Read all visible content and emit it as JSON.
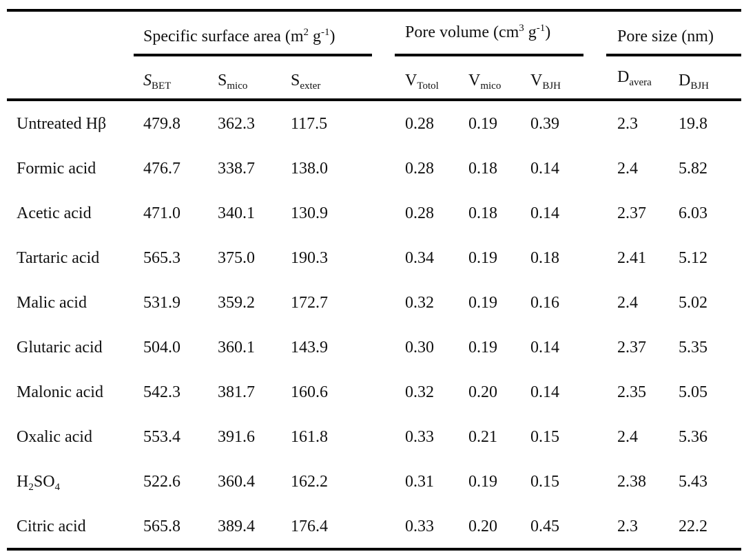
{
  "groups": [
    {
      "label": "Specific surface area (m",
      "sup1": "2",
      "mid": " g",
      "sup2": "-1",
      "end": ")"
    },
    {
      "label": "Pore volume (cm",
      "sup1": "3",
      "mid": " g",
      "sup2": "-1",
      "end": ")"
    },
    {
      "label": "Pore size (nm)"
    }
  ],
  "columns": [
    {
      "main": "S",
      "sub": "BET",
      "italic": true
    },
    {
      "main": "S",
      "sub": "mico"
    },
    {
      "main": "S",
      "sub": "exter"
    },
    {
      "main": "V",
      "sub": "Totol"
    },
    {
      "main": "V",
      "sub": "mico"
    },
    {
      "main": "V",
      "sub": "BJH"
    },
    {
      "main": "D",
      "sub": "avera"
    },
    {
      "main": "D",
      "sub": "BJH"
    }
  ],
  "rows": [
    {
      "label": "Untreated Hβ",
      "values": [
        "479.8",
        "362.3",
        "117.5",
        "0.28",
        "0.19",
        "0.39",
        "2.3",
        "19.8"
      ]
    },
    {
      "label": "Formic acid",
      "values": [
        "476.7",
        "338.7",
        "138.0",
        "0.28",
        "0.18",
        "0.14",
        "2.4",
        "5.82"
      ]
    },
    {
      "label": "Acetic acid",
      "values": [
        "471.0",
        "340.1",
        "130.9",
        "0.28",
        "0.18",
        "0.14",
        "2.37",
        "6.03"
      ]
    },
    {
      "label": "Tartaric acid",
      "values": [
        "565.3",
        "375.0",
        "190.3",
        "0.34",
        "0.19",
        "0.18",
        "2.41",
        "5.12"
      ]
    },
    {
      "label": "Malic acid",
      "values": [
        "531.9",
        "359.2",
        "172.7",
        "0.32",
        "0.19",
        "0.16",
        "2.4",
        "5.02"
      ]
    },
    {
      "label": "Glutaric acid",
      "values": [
        "504.0",
        "360.1",
        "143.9",
        "0.30",
        "0.19",
        "0.14",
        "2.37",
        "5.35"
      ]
    },
    {
      "label": "Malonic acid",
      "values": [
        "542.3",
        "381.7",
        "160.6",
        "0.32",
        "0.20",
        "0.14",
        "2.35",
        "5.05"
      ]
    },
    {
      "label": "Oxalic acid",
      "values": [
        "553.4",
        "391.6",
        "161.8",
        "0.33",
        "0.21",
        "0.15",
        "2.4",
        "5.36"
      ]
    },
    {
      "label": "H",
      "label_sub": "2",
      "label_mid": "SO",
      "label_sub2": "4",
      "values": [
        "522.6",
        "360.4",
        "162.2",
        "0.31",
        "0.19",
        "0.15",
        "2.38",
        "5.43"
      ]
    },
    {
      "label": "Citric acid",
      "values": [
        "565.8",
        "389.4",
        "176.4",
        "0.33",
        "0.20",
        "0.45",
        "2.3",
        "22.2"
      ]
    }
  ]
}
